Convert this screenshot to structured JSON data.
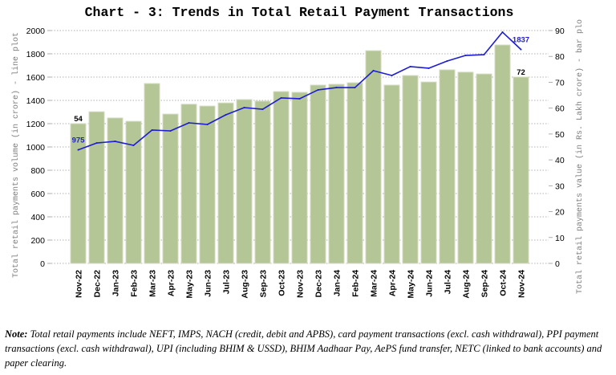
{
  "chart_data": {
    "type": "bar",
    "title": "Chart - 3: Trends in Total Retail Payment Transactions",
    "xlabel": "",
    "ylabel": "Total retail payments volume (in crore) - line plot",
    "y2label": "Total retail payments value (in Rs. Lakh crore) - bar plo",
    "categories": [
      "Nov-22",
      "Dec-22",
      "Jan-23",
      "Feb-23",
      "Mar-23",
      "Apr-23",
      "May-23",
      "Jun-23",
      "Jul-23",
      "Aug-23",
      "Sep-23",
      "Oct-23",
      "Nov-23",
      "Dec-23",
      "Jan-24",
      "Feb-24",
      "Mar-24",
      "Apr-24",
      "May-24",
      "Jun-24",
      "Jul-24",
      "Aug-24",
      "Sep-24",
      "Oct-24",
      "Nov-24"
    ],
    "series": [
      {
        "type": "bar",
        "axis": "right",
        "values": [
          54,
          58.6,
          56.2,
          54.9,
          69.5,
          57.7,
          61.5,
          60.8,
          62.0,
          63.3,
          62.7,
          66.4,
          66.1,
          68.9,
          69.2,
          69.8,
          82.2,
          68.9,
          72.6,
          70.1,
          74.8,
          73.9,
          73.2,
          84.4,
          72
        ]
      },
      {
        "type": "line",
        "axis": "left",
        "values": [
          975,
          1034,
          1048,
          1014,
          1145,
          1138,
          1207,
          1193,
          1276,
          1338,
          1324,
          1421,
          1414,
          1490,
          1510,
          1510,
          1655,
          1614,
          1690,
          1676,
          1738,
          1786,
          1793,
          1986,
          1837
        ]
      }
    ],
    "ylim": [
      0,
      2000
    ],
    "y2lim": [
      0,
      90
    ],
    "yticks": [
      0,
      200,
      400,
      600,
      800,
      1000,
      1200,
      1400,
      1600,
      1800,
      2000
    ],
    "y2ticks": [
      0,
      10,
      20,
      30,
      40,
      50,
      60,
      70,
      80,
      90
    ],
    "data_labels": [
      {
        "series": 0,
        "category": "Nov-22",
        "text": "54"
      },
      {
        "series": 1,
        "category": "Nov-22",
        "text": "975"
      },
      {
        "series": 1,
        "category": "Nov-24",
        "text": "1837"
      },
      {
        "series": 0,
        "category": "Nov-24",
        "text": "72"
      }
    ],
    "grid": true,
    "legend": "none",
    "colors": {
      "bar": "#b4c596",
      "bar_edge": "#d3dcc3",
      "line": "#1d1dd4",
      "bar_label": "#000000",
      "line_label": "#1d1dd4"
    }
  },
  "note": {
    "label": "Note:",
    "text": "Total retail payments include NEFT, IMPS, NACH (credit, debit and APBS), card payment transactions (excl. cash withdrawal), PPI payment transactions (excl. cash withdrawal), UPI (including BHIM & USSD), BHIM Aadhaar Pay, AePS fund transfer, NETC (linked to bank accounts) and paper clearing."
  }
}
